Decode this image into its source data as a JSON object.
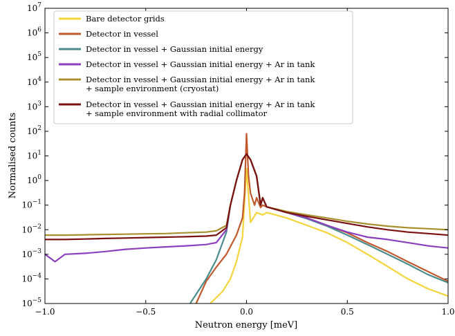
{
  "chart_data": {
    "type": "line",
    "xlabel": "Neutron energy [meV]",
    "ylabel": "Normalised counts",
    "xlim": [
      -1.0,
      1.0
    ],
    "ylim": [
      1e-05,
      10000000.0
    ],
    "yscale": "log",
    "x_ticks": [
      -1.0,
      -0.5,
      0.0,
      0.5,
      1.0
    ],
    "x_tick_labels": [
      "−1.0",
      "−0.5",
      "0.0",
      "0.5",
      "1.0"
    ],
    "y_ticks": [
      1e-05,
      0.0001,
      0.001,
      0.01,
      0.1,
      1.0,
      10.0,
      100.0,
      1000.0,
      10000.0,
      100000.0,
      1000000.0,
      10000000.0
    ],
    "y_tick_exponents": [
      "−5",
      "−4",
      "−3",
      "−2",
      "−1",
      "0",
      "1",
      "2",
      "3",
      "4",
      "5",
      "6",
      "7"
    ],
    "y_tick_base": "10",
    "grid": false,
    "legend_position": "upper-left",
    "series": [
      {
        "name": "Bare detector grids",
        "name_line2": "",
        "color": "#f4d43a",
        "x": [
          -0.18,
          -0.12,
          -0.08,
          -0.05,
          -0.02,
          0.0,
          0.02,
          0.05,
          0.08,
          0.1,
          0.2,
          0.3,
          0.4,
          0.5,
          0.6,
          0.7,
          0.8,
          0.9,
          1.0
        ],
        "y": [
          1e-05,
          3e-05,
          0.0001,
          0.0005,
          0.005,
          3,
          0.02,
          0.05,
          0.04,
          0.05,
          0.03,
          0.015,
          0.0075,
          0.003,
          0.001,
          0.00032,
          0.0001,
          4e-05,
          2e-05
        ]
      },
      {
        "name": "Detector in vessel",
        "name_line2": "",
        "color": "#c0582b",
        "x": [
          -0.25,
          -0.2,
          -0.15,
          -0.1,
          -0.05,
          -0.02,
          -0.01,
          0.0,
          0.01,
          0.02,
          0.04,
          0.05,
          0.07,
          0.08,
          0.1,
          0.2,
          0.3,
          0.4,
          0.5,
          0.6,
          0.7,
          0.8,
          0.9,
          1.0
        ],
        "y": [
          1e-05,
          8e-05,
          0.0003,
          0.001,
          0.006,
          0.03,
          0.3,
          80,
          1.5,
          0.3,
          0.1,
          0.2,
          0.08,
          0.1,
          0.085,
          0.05,
          0.03,
          0.015,
          0.0075,
          0.003,
          0.0013,
          0.0005,
          0.0002,
          8e-05
        ]
      },
      {
        "name": "Detector in vessel + Gaussian initial energy",
        "name_line2": "",
        "color": "#4a8c8c",
        "x": [
          -0.28,
          -0.2,
          -0.15,
          -0.1,
          -0.08,
          -0.05,
          -0.02,
          0.0,
          0.02,
          0.05,
          0.07,
          0.08,
          0.1,
          0.2,
          0.3,
          0.4,
          0.5,
          0.6,
          0.7,
          0.8,
          0.9,
          1.0
        ],
        "y": [
          1e-05,
          0.0001,
          0.0006,
          0.008,
          0.1,
          1,
          7,
          12,
          7,
          1.5,
          0.1,
          0.2,
          0.085,
          0.05,
          0.028,
          0.014,
          0.006,
          0.0025,
          0.001,
          0.0004,
          0.00015,
          7e-05
        ]
      },
      {
        "name": "Detector in vessel + Gaussian initial energy + Ar in tank",
        "name_line2": "",
        "color": "#8a3fbf",
        "x": [
          -1.0,
          -0.95,
          -0.9,
          -0.8,
          -0.7,
          -0.6,
          -0.5,
          -0.4,
          -0.3,
          -0.2,
          -0.15,
          -0.1,
          -0.08,
          -0.05,
          -0.02,
          0.0,
          0.02,
          0.05,
          0.07,
          0.08,
          0.1,
          0.2,
          0.3,
          0.4,
          0.5,
          0.6,
          0.7,
          0.8,
          0.9,
          1.0
        ],
        "y": [
          0.001,
          0.0005,
          0.001,
          0.0011,
          0.0013,
          0.0016,
          0.0018,
          0.002,
          0.0022,
          0.0025,
          0.003,
          0.01,
          0.1,
          1,
          7,
          12,
          7,
          1.5,
          0.1,
          0.2,
          0.085,
          0.05,
          0.03,
          0.015,
          0.008,
          0.005,
          0.004,
          0.003,
          0.0022,
          0.0018
        ]
      },
      {
        "name": "Detector in vessel + Gaussian initial energy + Ar in tank",
        "name_line2": "+ sample environment (cryostat)",
        "color": "#a8902e",
        "x": [
          -1.0,
          -0.9,
          -0.8,
          -0.7,
          -0.6,
          -0.5,
          -0.4,
          -0.3,
          -0.2,
          -0.15,
          -0.1,
          -0.08,
          -0.05,
          -0.02,
          0.0,
          0.02,
          0.05,
          0.07,
          0.08,
          0.1,
          0.2,
          0.3,
          0.4,
          0.5,
          0.6,
          0.7,
          0.8,
          0.9,
          1.0
        ],
        "y": [
          0.006,
          0.006,
          0.0062,
          0.0064,
          0.0066,
          0.0068,
          0.007,
          0.0075,
          0.008,
          0.009,
          0.015,
          0.1,
          1,
          7,
          12,
          7,
          1.5,
          0.1,
          0.2,
          0.085,
          0.055,
          0.04,
          0.03,
          0.022,
          0.017,
          0.014,
          0.012,
          0.011,
          0.01
        ]
      },
      {
        "name": "Detector in vessel + Gaussian initial energy + Ar in tank",
        "name_line2": "+ sample environment with radial collimator",
        "color": "#7a1010",
        "x": [
          -1.0,
          -0.9,
          -0.8,
          -0.7,
          -0.6,
          -0.5,
          -0.4,
          -0.3,
          -0.2,
          -0.15,
          -0.1,
          -0.08,
          -0.05,
          -0.02,
          0.0,
          0.02,
          0.05,
          0.07,
          0.08,
          0.1,
          0.2,
          0.3,
          0.4,
          0.5,
          0.6,
          0.7,
          0.8,
          0.9,
          1.0
        ],
        "y": [
          0.004,
          0.004,
          0.0042,
          0.0044,
          0.0046,
          0.0048,
          0.005,
          0.0052,
          0.0055,
          0.006,
          0.012,
          0.1,
          1,
          7,
          12,
          7,
          1.5,
          0.1,
          0.2,
          0.085,
          0.05,
          0.035,
          0.025,
          0.018,
          0.013,
          0.01,
          0.008,
          0.007,
          0.006
        ]
      }
    ]
  }
}
